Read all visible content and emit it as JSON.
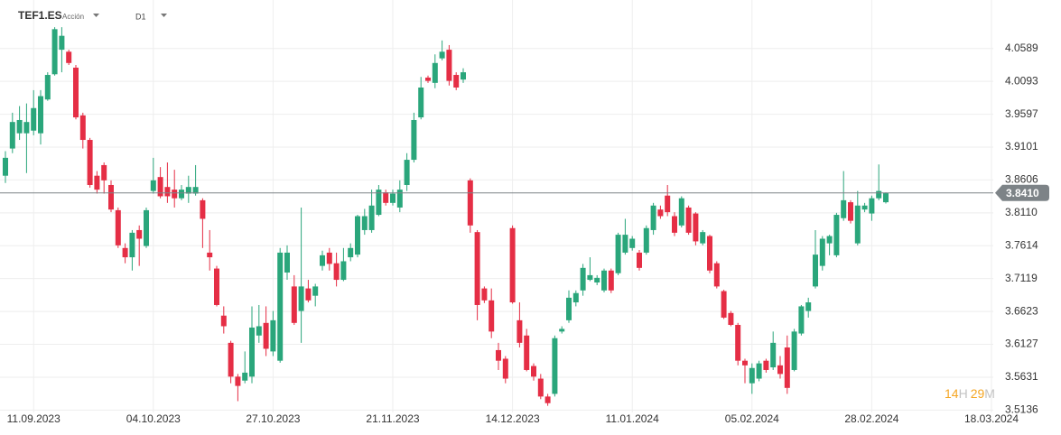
{
  "chart_data": {
    "type": "candlestick",
    "symbol": "TEF1.ES",
    "instrument_type": "Acción",
    "timeframe": "D1",
    "countdown": {
      "hours": "14",
      "hours_unit": "H",
      "minutes": "29",
      "minutes_unit": "M"
    },
    "categories": [
      null,
      null,
      null,
      null,
      "11.09.2023",
      null,
      null,
      null,
      null,
      null,
      null,
      null,
      null,
      null,
      null,
      null,
      null,
      null,
      null,
      null,
      null,
      "04.10.2023",
      null,
      null,
      null,
      null,
      null,
      null,
      null,
      null,
      null,
      null,
      null,
      null,
      null,
      null,
      null,
      null,
      "27.10.2023",
      null,
      null,
      null,
      null,
      null,
      null,
      null,
      null,
      null,
      null,
      null,
      null,
      null,
      null,
      null,
      null,
      "21.11.2023",
      null,
      null,
      null,
      null,
      null,
      null,
      null,
      null,
      null,
      null,
      null,
      null,
      null,
      null,
      null,
      null,
      "14.12.2023",
      null,
      null,
      null,
      null,
      null,
      null,
      null,
      null,
      null,
      null,
      null,
      null,
      null,
      null,
      null,
      null,
      "11.01.2024",
      null,
      null,
      null,
      null,
      null,
      null,
      null,
      null,
      null,
      null,
      null,
      null,
      null,
      null,
      null,
      null,
      "05.02.2024",
      null,
      null,
      null,
      null,
      null,
      null,
      null,
      null,
      null,
      null,
      null,
      null,
      null,
      null,
      null,
      null,
      "28.02.2024",
      null,
      null,
      null,
      null,
      null,
      null,
      null,
      null,
      null,
      null,
      null,
      null,
      null,
      null,
      null,
      null,
      "18.03.2024"
    ],
    "open": [
      3.867,
      3.908,
      3.931,
      3.931,
      3.935,
      3.931,
      3.982,
      4.02,
      4.057,
      4.054,
      4.03,
      3.958,
      3.921,
      3.867,
      3.883,
      3.853,
      3.815,
      3.758,
      3.744,
      3.785,
      3.761,
      3.844,
      3.865,
      3.85,
      3.846,
      3.833,
      3.84,
      3.84,
      3.83,
      3.751,
      3.727,
      3.656,
      3.615,
      3.564,
      3.558,
      3.564,
      3.626,
      3.645,
      3.602,
      3.588,
      3.721,
      3.7,
      3.663,
      3.697,
      3.686,
      3.731,
      3.751,
      3.735,
      3.71,
      3.744,
      3.748,
      3.785,
      3.785,
      3.808,
      3.842,
      3.826,
      3.819,
      3.853,
      3.891,
      3.955,
      4.015,
      4.007,
      4.044,
      4.057,
      4.019,
      4.012,
      3.86,
      3.782,
      3.697,
      3.679,
      3.604,
      3.591,
      3.788,
      3.649,
      3.626,
      3.58,
      3.561,
      3.534,
      3.538,
      3.632,
      3.649,
      3.676,
      3.694,
      3.71,
      3.706,
      3.694,
      3.724,
      3.72,
      3.751,
      3.758,
      3.751,
      3.751,
      3.785,
      3.816,
      3.837,
      3.806,
      3.792,
      3.819,
      3.81,
      3.765,
      3.776,
      3.735,
      3.693,
      3.66,
      3.642,
      3.588,
      3.554,
      3.561,
      3.588,
      3.578,
      3.581,
      3.608,
      3.574,
      3.629,
      3.663,
      3.7,
      3.731,
      3.765,
      3.747,
      3.803,
      3.827,
      3.765,
      3.816,
      3.81,
      3.833,
      3.827,
      null,
      null,
      null,
      null,
      null,
      null,
      null,
      null,
      null,
      null,
      null,
      null,
      null,
      null,
      null
    ],
    "high": [
      3.904,
      3.962,
      3.972,
      3.976,
      3.996,
      3.996,
      4.023,
      4.091,
      4.091,
      4.057,
      4.034,
      3.962,
      3.924,
      3.874,
      3.887,
      3.86,
      3.819,
      3.765,
      3.785,
      3.792,
      3.819,
      3.894,
      3.88,
      3.887,
      3.876,
      3.853,
      3.867,
      3.883,
      3.833,
      3.785,
      3.731,
      3.67,
      3.618,
      3.568,
      3.602,
      3.67,
      3.672,
      3.67,
      3.663,
      3.758,
      3.762,
      3.717,
      3.819,
      3.71,
      3.704,
      3.754,
      3.758,
      3.751,
      3.758,
      3.765,
      3.808,
      3.817,
      3.846,
      3.853,
      3.846,
      3.846,
      3.86,
      3.901,
      3.962,
      4.016,
      4.018,
      4.05,
      4.071,
      4.064,
      4.023,
      4.029,
      3.863,
      3.785,
      3.7,
      3.697,
      3.615,
      3.595,
      3.792,
      3.676,
      3.636,
      3.584,
      3.568,
      3.538,
      3.626,
      3.64,
      3.694,
      3.694,
      3.734,
      3.744,
      3.717,
      3.727,
      3.727,
      3.781,
      3.802,
      3.776,
      3.755,
      3.792,
      3.826,
      3.822,
      3.853,
      3.812,
      3.836,
      3.822,
      3.812,
      3.785,
      3.778,
      3.738,
      3.695,
      3.663,
      3.645,
      3.591,
      3.584,
      3.588,
      3.591,
      3.632,
      3.595,
      3.626,
      3.636,
      3.672,
      3.683,
      3.785,
      3.776,
      3.778,
      3.811,
      3.874,
      3.83,
      3.844,
      3.826,
      3.837,
      3.884,
      3.842,
      null,
      null,
      null,
      null,
      null,
      null,
      null,
      null,
      null,
      null,
      null,
      null,
      null,
      null,
      null
    ],
    "low": [
      3.856,
      3.901,
      3.921,
      3.871,
      3.928,
      3.914,
      3.98,
      4.018,
      4.023,
      4.034,
      3.952,
      3.908,
      3.849,
      3.84,
      3.84,
      3.812,
      3.758,
      3.735,
      3.724,
      3.731,
      3.758,
      3.84,
      3.833,
      3.826,
      3.819,
      3.83,
      3.826,
      3.837,
      3.758,
      3.724,
      3.67,
      3.629,
      3.554,
      3.527,
      3.554,
      3.554,
      3.615,
      3.595,
      3.595,
      3.585,
      3.71,
      3.642,
      3.615,
      3.676,
      3.67,
      3.724,
      3.724,
      3.7,
      3.708,
      3.738,
      3.744,
      3.778,
      3.781,
      3.806,
      3.822,
      3.822,
      3.812,
      3.844,
      3.887,
      3.952,
      4.007,
      3.999,
      4.041,
      4.003,
      3.996,
      4.007,
      3.781,
      3.649,
      3.675,
      3.622,
      3.574,
      3.554,
      3.674,
      3.608,
      3.572,
      3.558,
      3.53,
      3.52,
      3.534,
      3.629,
      3.645,
      3.67,
      3.686,
      3.708,
      3.702,
      3.691,
      3.69,
      3.717,
      3.748,
      3.754,
      3.724,
      3.748,
      3.778,
      3.802,
      3.806,
      3.776,
      3.789,
      3.778,
      3.762,
      3.762,
      3.72,
      3.697,
      3.651,
      3.64,
      3.581,
      3.554,
      3.538,
      3.557,
      3.57,
      3.574,
      3.561,
      3.538,
      3.572,
      3.626,
      3.653,
      3.697,
      3.724,
      3.747,
      3.744,
      3.799,
      3.795,
      3.762,
      3.812,
      3.799,
      3.83,
      3.825,
      null,
      null,
      null,
      null,
      null,
      null,
      null,
      null,
      null,
      null,
      null,
      null,
      null,
      null,
      null
    ],
    "close": [
      3.894,
      3.948,
      3.951,
      3.948,
      3.969,
      3.987,
      4.019,
      4.088,
      4.078,
      4.037,
      3.955,
      3.921,
      3.853,
      3.846,
      3.86,
      3.816,
      3.762,
      3.744,
      3.781,
      3.772,
      3.815,
      3.86,
      3.836,
      3.836,
      3.833,
      3.846,
      3.85,
      3.85,
      3.802,
      3.744,
      3.672,
      3.64,
      3.564,
      3.55,
      3.57,
      3.638,
      3.64,
      3.606,
      3.649,
      3.751,
      3.751,
      3.645,
      3.7,
      3.679,
      3.7,
      3.747,
      3.734,
      3.71,
      3.738,
      3.758,
      3.806,
      3.806,
      3.822,
      3.846,
      3.826,
      3.84,
      3.846,
      3.891,
      3.951,
      4.0,
      4.01,
      4.037,
      4.054,
      4.01,
      4.0,
      4.023,
      3.792,
      3.672,
      3.679,
      3.632,
      3.588,
      3.561,
      3.676,
      3.615,
      3.574,
      3.564,
      3.534,
      3.524,
      3.622,
      3.636,
      3.683,
      3.69,
      3.728,
      3.717,
      3.713,
      3.724,
      3.694,
      3.778,
      3.778,
      3.772,
      3.728,
      3.788,
      3.822,
      3.806,
      3.812,
      3.781,
      3.833,
      3.781,
      3.768,
      3.782,
      3.724,
      3.7,
      3.653,
      3.642,
      3.588,
      3.581,
      3.577,
      3.584,
      3.574,
      3.615,
      3.568,
      3.547,
      3.632,
      3.67,
      3.676,
      3.748,
      3.772,
      3.776,
      3.808,
      3.83,
      3.799,
      3.822,
      3.822,
      3.833,
      3.844,
      3.841,
      null,
      null,
      null,
      null,
      null,
      null,
      null,
      null,
      null,
      null,
      null,
      null,
      null,
      null,
      null
    ],
    "up_color": "#2aa67b",
    "down_color": "#e52e45",
    "last_price": {
      "value": 3.841,
      "label": "3.8410"
    },
    "last_price_color": "#7d8387",
    "ylim": [
      3.51,
      4.132
    ],
    "yticks": [
      3.5136,
      3.5631,
      3.6127,
      3.6623,
      3.7119,
      3.7614,
      {
        "value": 3.811,
        "label": "3.8110"
      },
      3.8606,
      3.9101,
      3.9597,
      4.0093,
      4.0589
    ],
    "grid": true
  }
}
